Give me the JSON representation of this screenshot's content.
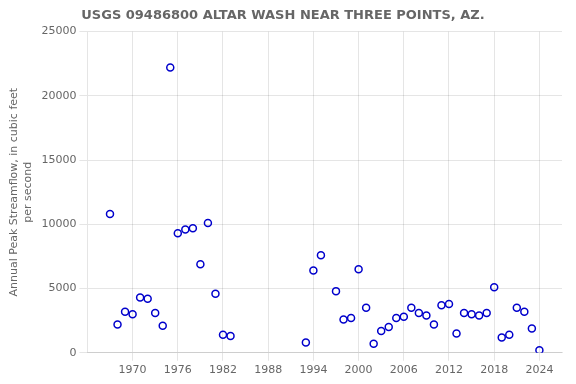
{
  "chart_data": {
    "type": "scatter",
    "title": "USGS 09486800 ALTAR WASH NEAR THREE POINTS, AZ.",
    "ylabel": "Annual Peak Streamflow, in cubic feet\nper second",
    "x": [
      1967,
      1968,
      1969,
      1970,
      1971,
      1972,
      1973,
      1974,
      1975,
      1976,
      1977,
      1978,
      1979,
      1980,
      1981,
      1982,
      1983,
      1993,
      1994,
      1995,
      1997,
      1998,
      1999,
      2000,
      2001,
      2002,
      2003,
      2004,
      2005,
      2006,
      2007,
      2008,
      2009,
      2010,
      2011,
      2012,
      2013,
      2014,
      2015,
      2016,
      2017,
      2018,
      2019,
      2020,
      2021,
      2022,
      2023,
      2024
    ],
    "values": [
      10800,
      2200,
      3200,
      3000,
      4300,
      4200,
      3100,
      2100,
      22200,
      9300,
      9600,
      9700,
      6900,
      10100,
      4600,
      1400,
      1300,
      800,
      6400,
      7600,
      4800,
      2600,
      2700,
      6500,
      3500,
      700,
      1700,
      2000,
      2700,
      2800,
      3500,
      3100,
      2900,
      2200,
      3700,
      3800,
      1500,
      3100,
      3000,
      2900,
      3100,
      5100,
      1200,
      1400,
      3500,
      3200,
      1900,
      200
    ],
    "color": "#0000cc",
    "marker": "circle",
    "xlim": [
      1964,
      2027
    ],
    "xticks": [
      1970,
      1976,
      1982,
      1988,
      1994,
      2000,
      2006,
      2012,
      2018,
      2024
    ],
    "ylim": [
      0,
      25000
    ],
    "yticks": [
      0,
      5000,
      10000,
      15000,
      20000,
      25000
    ],
    "grid": true
  }
}
